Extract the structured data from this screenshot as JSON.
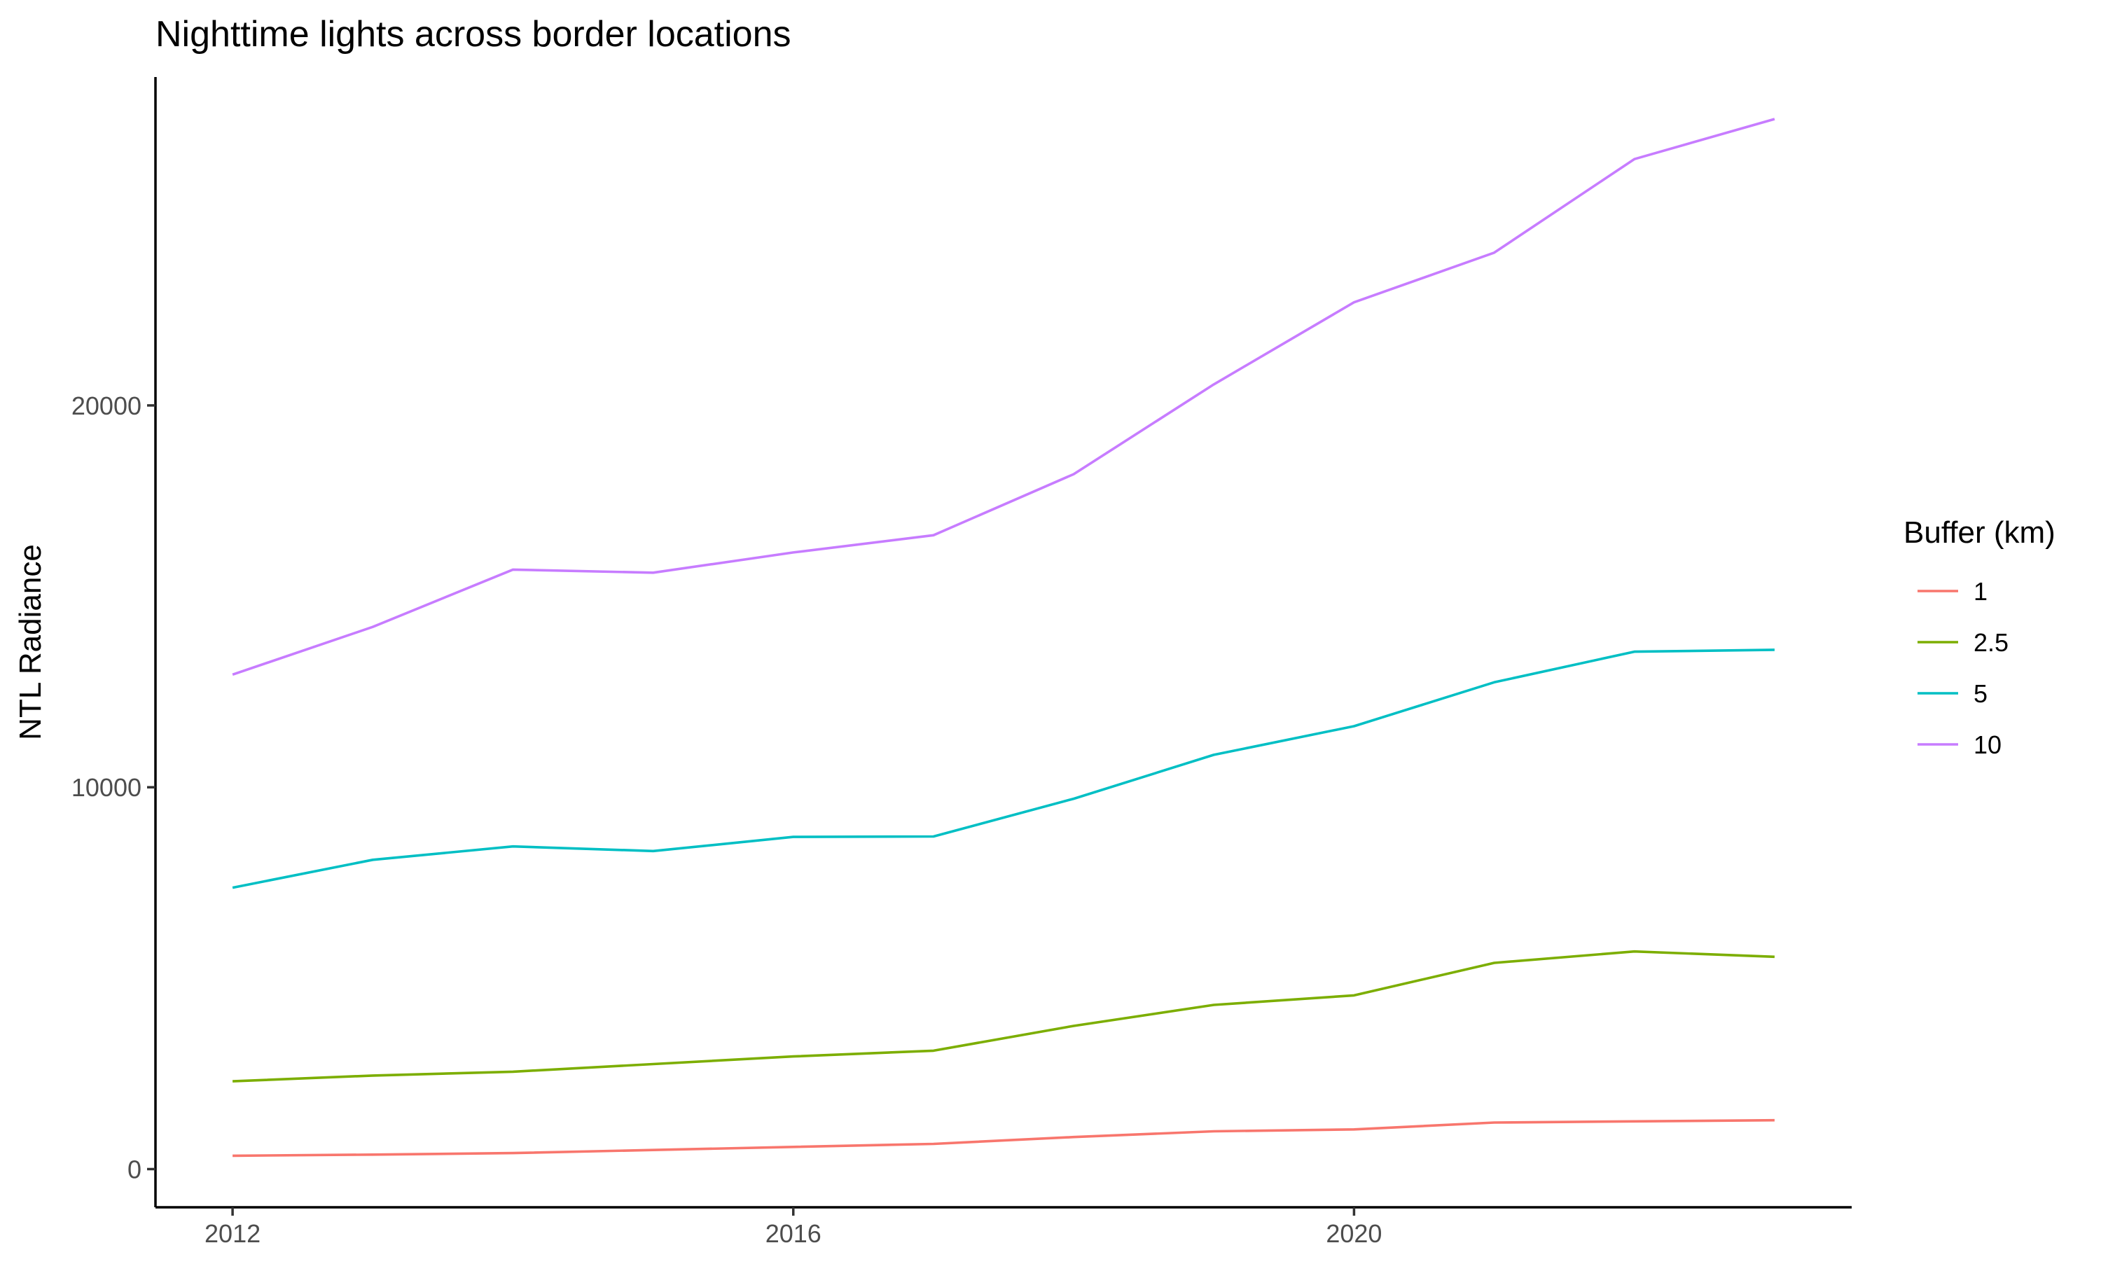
{
  "chart_data": {
    "type": "line",
    "title": "Nighttime lights across border locations",
    "xlabel": "",
    "ylabel": "NTL Radiance",
    "x": [
      2012,
      2013,
      2014,
      2015,
      2016,
      2017,
      2018,
      2019,
      2020,
      2021,
      2022,
      2023
    ],
    "xlim": [
      2011.45,
      2023.55
    ],
    "ylim": [
      -1000,
      28600
    ],
    "x_ticks": [
      2012,
      2016,
      2020
    ],
    "x_tick_labels": [
      "2012",
      "2016",
      "2020"
    ],
    "y_ticks": [
      0,
      10000,
      20000
    ],
    "y_tick_labels": [
      "0",
      "10000",
      "20000"
    ],
    "grid": false,
    "legend": {
      "title": "Buffer (km)",
      "position": "right"
    },
    "series": [
      {
        "name": "1",
        "color": "#F8766D",
        "values": [
          350,
          380,
          420,
          500,
          580,
          660,
          840,
          990,
          1040,
          1220,
          1250,
          1280
        ]
      },
      {
        "name": "2.5",
        "color": "#7CAE00",
        "values": [
          2300,
          2450,
          2550,
          2750,
          2950,
          3100,
          3750,
          4300,
          4550,
          5400,
          5700,
          5560
        ]
      },
      {
        "name": "5",
        "color": "#00BFC4",
        "values": [
          7370,
          8100,
          8450,
          8330,
          8700,
          8710,
          9700,
          10850,
          11600,
          12750,
          13550,
          13600
        ]
      },
      {
        "name": "10",
        "color": "#C77CFF",
        "values": [
          12950,
          14200,
          15700,
          15620,
          16150,
          16600,
          18200,
          20550,
          22700,
          24000,
          26450,
          27500
        ]
      }
    ]
  }
}
